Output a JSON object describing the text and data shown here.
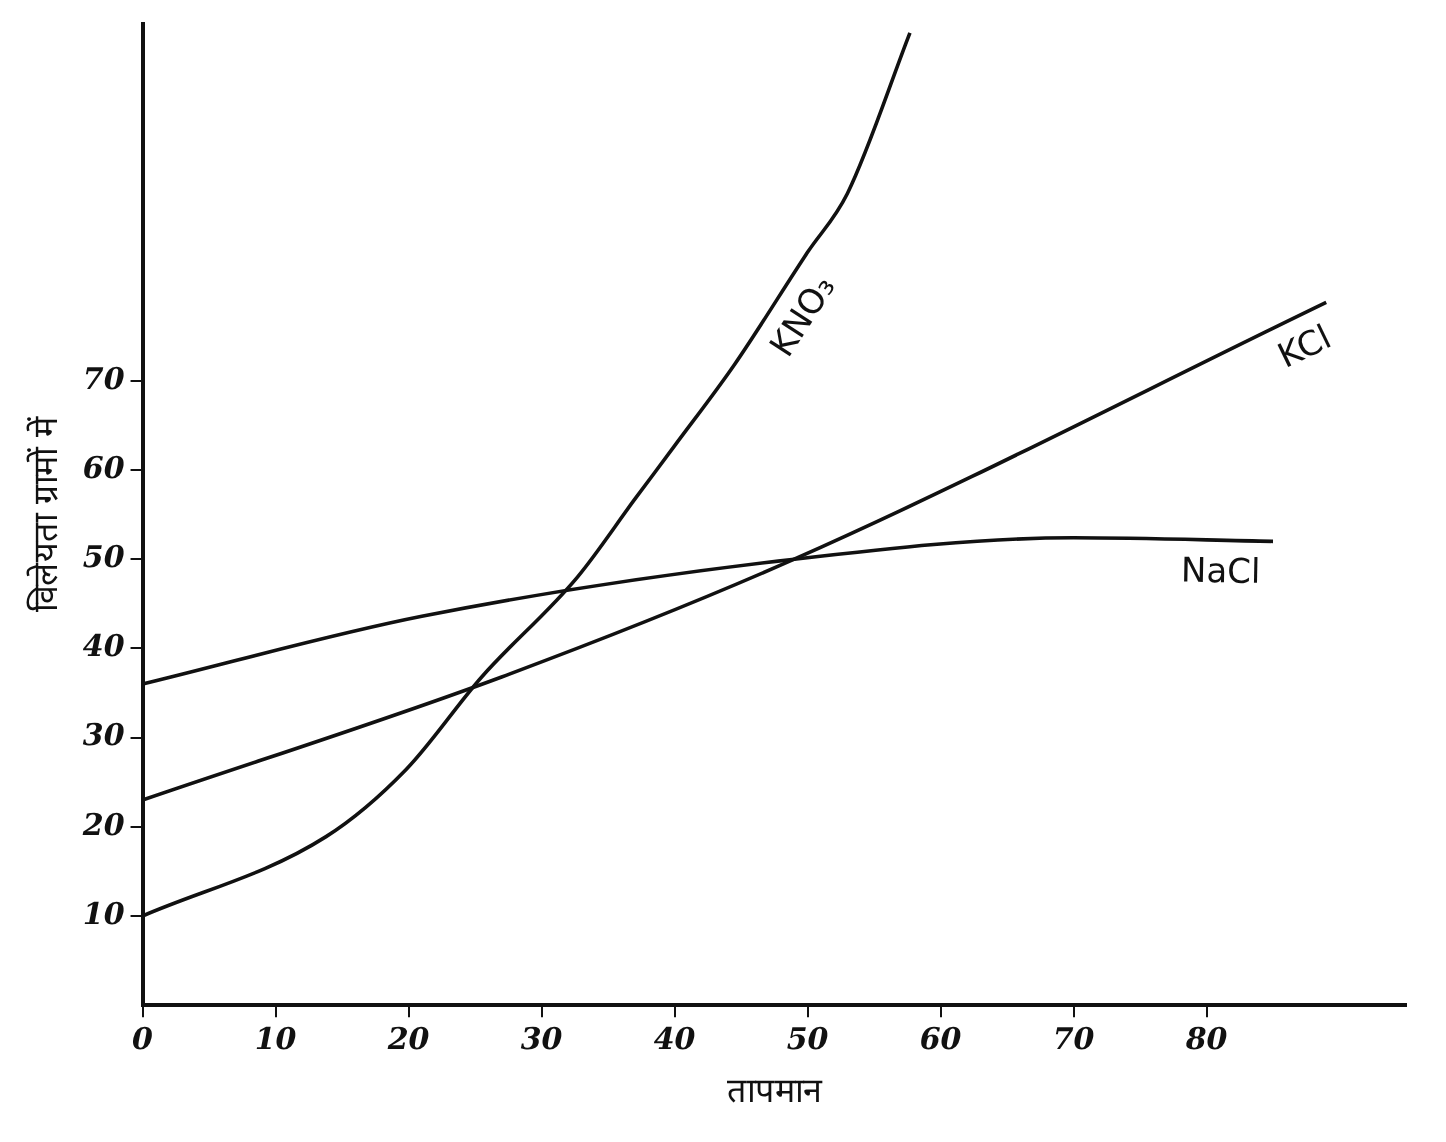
{
  "chart_data": {
    "type": "line",
    "xlabel": "तापमान",
    "ylabel": "विलेयता ग्रामों में",
    "xlim": [
      0,
      95
    ],
    "ylim": [
      0,
      110
    ],
    "xticks": [
      0,
      10,
      20,
      30,
      40,
      50,
      60,
      70,
      80
    ],
    "yticks": [
      10,
      20,
      30,
      40,
      50,
      60,
      70
    ],
    "grid": false,
    "legend": false,
    "marker": "none",
    "line_style": "solid",
    "series": [
      {
        "name": "KNO₃",
        "color": "#111111",
        "x": [
          0,
          13.8,
          19.8,
          25.5,
          32.7,
          37,
          40,
          44.5,
          50,
          53,
          57.7
        ],
        "values": [
          10,
          18.9,
          26.4,
          36.8,
          48,
          56.7,
          62.7,
          71.8,
          84.4,
          91,
          109
        ]
      },
      {
        "name": "KCl",
        "color": "#111111",
        "x": [
          0,
          27,
          49,
          89
        ],
        "values": [
          23,
          36.8,
          50,
          78.8
        ]
      },
      {
        "name": "NaCl",
        "color": "#111111",
        "x": [
          0,
          21,
          49,
          70,
          85
        ],
        "values": [
          36,
          43.6,
          50,
          52.4,
          52
        ]
      }
    ]
  }
}
